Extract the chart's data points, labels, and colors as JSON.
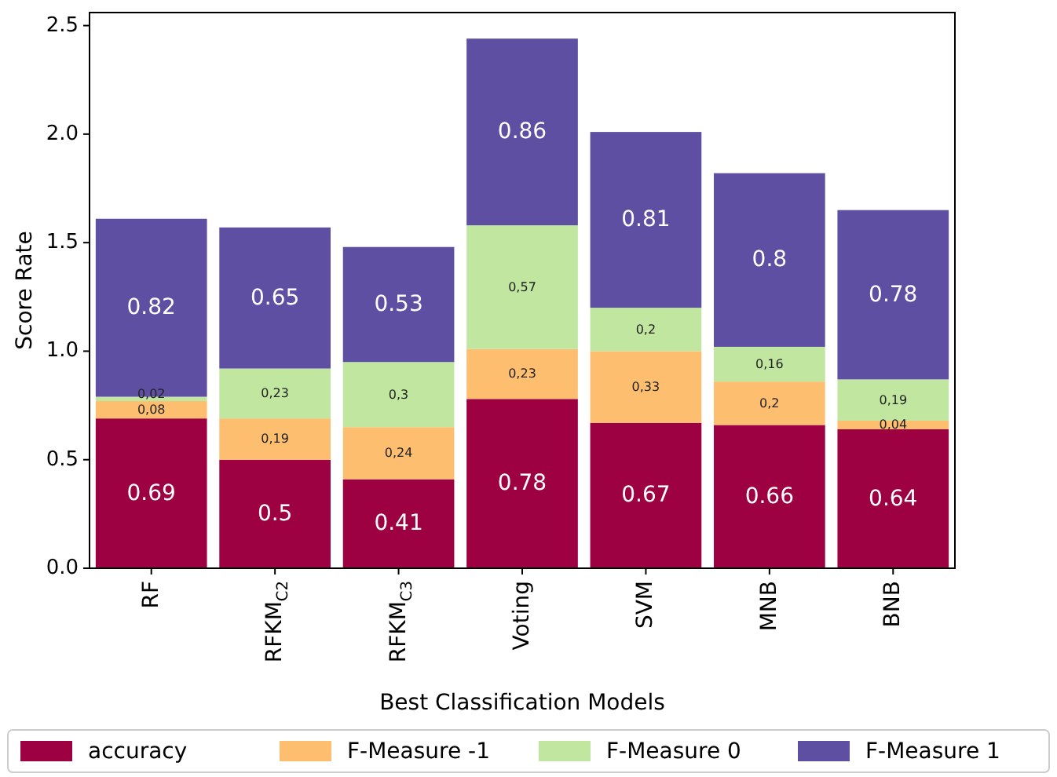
{
  "chart_data": {
    "type": "bar",
    "stacked": true,
    "xlabel": "Best Classification Models",
    "ylabel": "Score Rate",
    "categories": [
      "RF",
      "RFKM$_{C2}$",
      "RFKM$_{C3}$",
      "Voting",
      "SVM",
      "MNB",
      "BNB"
    ],
    "series": [
      {
        "name": "accuracy",
        "color": "#9e0142",
        "values": [
          0.69,
          0.5,
          0.41,
          0.78,
          0.67,
          0.66,
          0.64
        ],
        "value_labels": [
          "0.69",
          "0.5",
          "0.41",
          "0.78",
          "0.67",
          "0.66",
          "0.64"
        ]
      },
      {
        "name": "F-Measure -1",
        "color": "#fdbe6f",
        "values": [
          0.08,
          0.19,
          0.24,
          0.23,
          0.33,
          0.2,
          0.04
        ],
        "value_labels": [
          "0,08",
          "0,19",
          "0,24",
          "0,23",
          "0,33",
          "0,2",
          "0,04"
        ]
      },
      {
        "name": "F-Measure 0",
        "color": "#c1e6a0",
        "values": [
          0.02,
          0.23,
          0.3,
          0.57,
          0.2,
          0.16,
          0.19
        ],
        "value_labels": [
          "0,02",
          "0,23",
          "0,3",
          "0,57",
          "0,2",
          "0,16",
          "0,19"
        ]
      },
      {
        "name": "F-Measure 1",
        "color": "#5e4fa2",
        "values": [
          0.82,
          0.65,
          0.53,
          0.86,
          0.81,
          0.8,
          0.78
        ],
        "value_labels": [
          "0.82",
          "0.65",
          "0.53",
          "0.86",
          "0.81",
          "0.8",
          "0.78"
        ]
      }
    ],
    "ylim": [
      0,
      2.56
    ],
    "yticks": [
      {
        "value": 0,
        "label": "0.0"
      },
      {
        "value": 0.5,
        "label": "0.5"
      },
      {
        "value": 1,
        "label": "1.0"
      },
      {
        "value": 1.5,
        "label": "1.5"
      },
      {
        "value": 2,
        "label": "2.0"
      },
      {
        "value": 2.5,
        "label": "2.5"
      }
    ],
    "legend": "bottom"
  }
}
